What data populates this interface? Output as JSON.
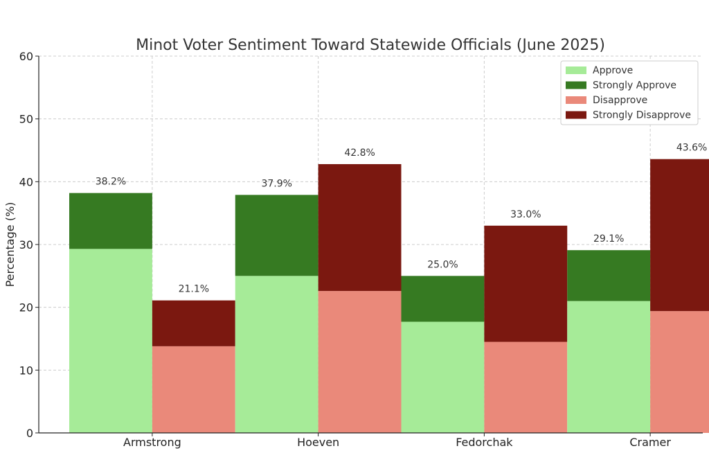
{
  "chart_data": {
    "type": "bar",
    "stacked": true,
    "title": "Minot Voter Sentiment Toward Statewide Officials (June 2025)",
    "xlabel": "",
    "ylabel": "Percentage (%)",
    "ylim": [
      0,
      60
    ],
    "yticks": [
      "0",
      "10",
      "20",
      "30",
      "40",
      "50",
      "60"
    ],
    "grid": true,
    "legend_position": "top-right",
    "categories": [
      "Armstrong",
      "Hoeven",
      "Fedorchak",
      "Cramer"
    ],
    "series": [
      {
        "name": "Approve",
        "group": "approval",
        "color": "#a6eb98",
        "values": [
          29.3,
          25.0,
          17.7,
          21.0
        ]
      },
      {
        "name": "Strongly Approve",
        "group": "approval",
        "color": "#367a22",
        "values": [
          8.9,
          12.9,
          7.3,
          8.1
        ]
      },
      {
        "name": "Disapprove",
        "group": "disapproval",
        "color": "#ea897a",
        "values": [
          13.8,
          22.6,
          14.5,
          19.4
        ]
      },
      {
        "name": "Strongly Disapprove",
        "group": "disapproval",
        "color": "#7b1810",
        "values": [
          7.3,
          20.2,
          18.5,
          24.2
        ]
      }
    ],
    "totals": {
      "approval": [
        "38.2%",
        "37.9%",
        "25.0%",
        "29.1%"
      ],
      "disapproval": [
        "21.1%",
        "42.8%",
        "33.0%",
        "43.6%"
      ]
    }
  }
}
